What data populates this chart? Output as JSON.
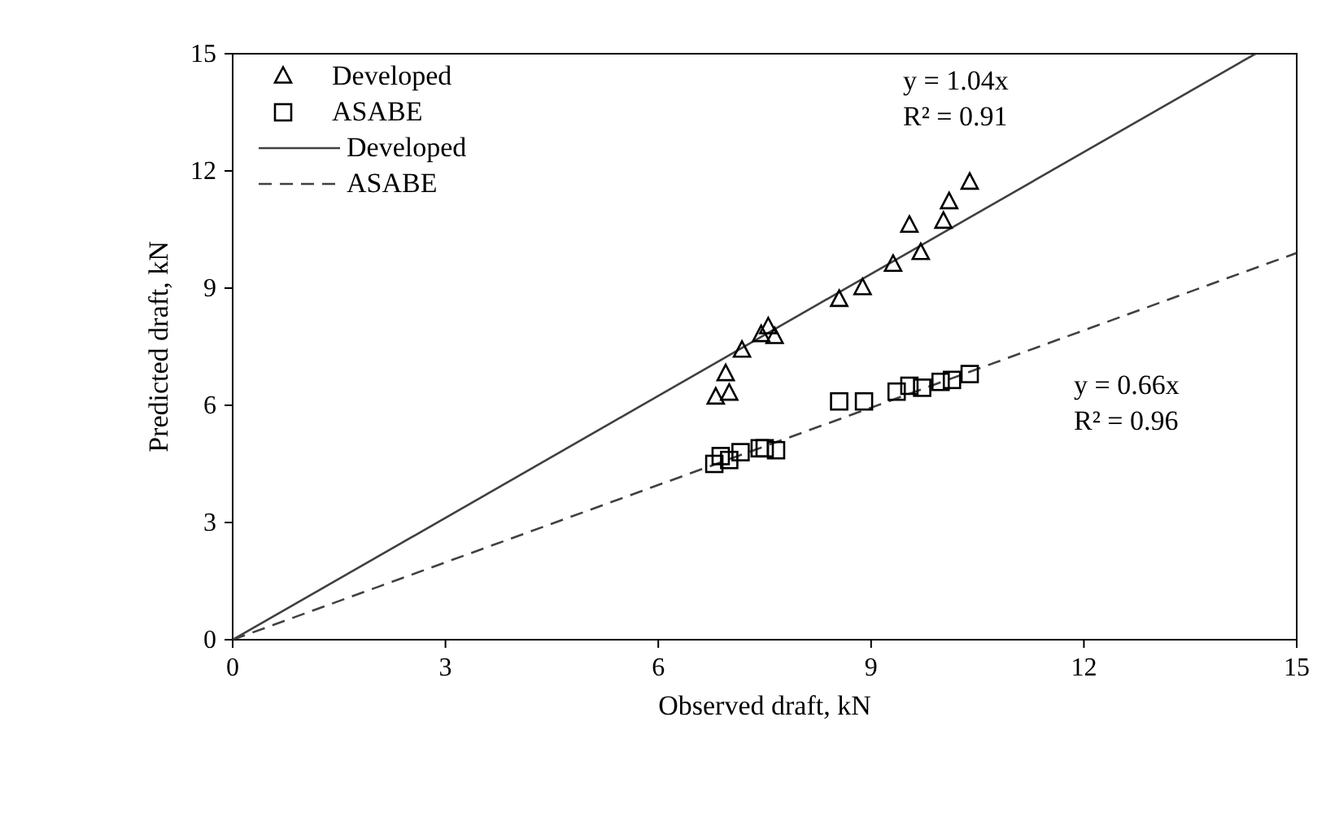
{
  "chart_data": {
    "type": "scatter",
    "xlabel": "Observed draft, kN",
    "ylabel": "Predicted draft, kN",
    "xlim": [
      0,
      15
    ],
    "ylim": [
      0,
      15
    ],
    "xticks": [
      0,
      3,
      6,
      9,
      12,
      15
    ],
    "yticks": [
      0,
      3,
      6,
      9,
      12,
      15
    ],
    "grid": false,
    "legend": "top left",
    "series": [
      {
        "name": "Developed",
        "marker": "triangle",
        "color": "#000000",
        "x": [
          6.81,
          6.95,
          7.0,
          7.18,
          7.45,
          7.55,
          7.64,
          8.55,
          8.88,
          9.31,
          9.54,
          9.7,
          10.02,
          10.1,
          10.39
        ],
        "values": [
          6.2,
          6.8,
          6.3,
          7.4,
          7.8,
          8.0,
          7.75,
          8.7,
          9.0,
          9.6,
          10.6,
          9.9,
          10.7,
          11.2,
          11.7
        ]
      },
      {
        "name": "ASABE",
        "marker": "square",
        "color": "#000000",
        "x": [
          6.79,
          6.88,
          7.0,
          7.16,
          7.43,
          7.5,
          7.66,
          8.55,
          8.9,
          9.36,
          9.54,
          9.72,
          9.98,
          10.14,
          10.39
        ],
        "values": [
          4.5,
          4.7,
          4.6,
          4.8,
          4.9,
          4.9,
          4.85,
          6.1,
          6.1,
          6.35,
          6.5,
          6.45,
          6.6,
          6.65,
          6.8
        ]
      },
      {
        "name": "Developed",
        "type": "line",
        "line_style": "solid",
        "color": "#404040",
        "x": [
          0,
          14.42
        ],
        "values": [
          0,
          15
        ]
      },
      {
        "name": "ASABE",
        "type": "line",
        "line_style": "dashed",
        "color": "#404040",
        "x": [
          0,
          15
        ],
        "values": [
          0,
          9.9
        ]
      }
    ],
    "annotations": [
      "y = 1.04x",
      "R² = 0.91",
      "y = 0.66x",
      "R² = 0.96"
    ]
  }
}
